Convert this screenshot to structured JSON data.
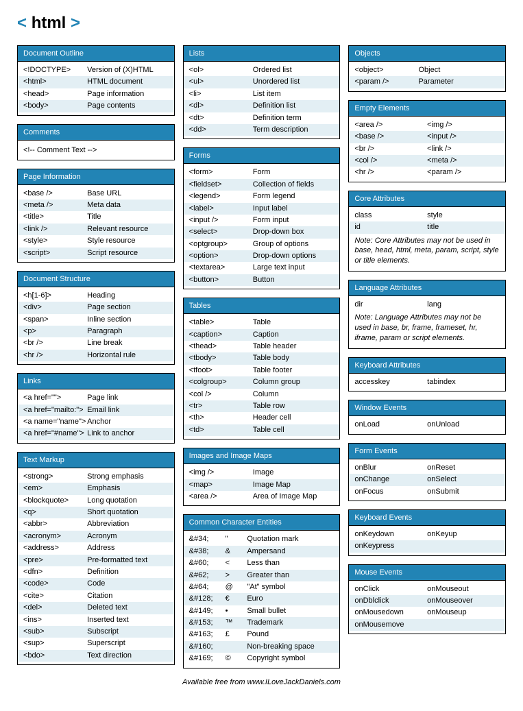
{
  "logo": {
    "text": "html",
    "bracket_color": "#2284b5"
  },
  "colors": {
    "header_bg": "#2284b5",
    "alt_row_bg": "#e3eff4",
    "border": "#000000",
    "text": "#000000",
    "header_text": "#ffffff"
  },
  "columns": [
    {
      "sections": [
        {
          "title": "Document Outline",
          "type": "two-col",
          "rows": [
            {
              "a": "<!DOCTYPE>",
              "b": "Version of (X)HTML"
            },
            {
              "a": "<html>",
              "b": "HTML document"
            },
            {
              "a": "<head>",
              "b": "Page information"
            },
            {
              "a": "<body>",
              "b": "Page contents"
            }
          ]
        },
        {
          "title": "Comments",
          "type": "single",
          "rows": [
            {
              "a": "<!-- Comment Text -->"
            }
          ]
        },
        {
          "title": "Page Information",
          "type": "two-col",
          "rows": [
            {
              "a": "<base />",
              "b": "Base URL"
            },
            {
              "a": "<meta />",
              "b": "Meta data"
            },
            {
              "a": "<title>",
              "b": "Title"
            },
            {
              "a": "<link />",
              "b": "Relevant resource"
            },
            {
              "a": "<style>",
              "b": "Style resource"
            },
            {
              "a": "<script>",
              "b": "Script resource"
            }
          ]
        },
        {
          "title": "Document Structure",
          "type": "two-col",
          "rows": [
            {
              "a": "<h[1-6]>",
              "b": "Heading"
            },
            {
              "a": "<div>",
              "b": "Page section"
            },
            {
              "a": "<span>",
              "b": "Inline section"
            },
            {
              "a": "<p>",
              "b": "Paragraph"
            },
            {
              "a": "<br />",
              "b": "Line break"
            },
            {
              "a": "<hr />",
              "b": "Horizontal rule"
            }
          ]
        },
        {
          "title": "Links",
          "type": "two-col",
          "rows": [
            {
              "a": "<a href=\"\">",
              "b": "Page link"
            },
            {
              "a": "<a href=\"mailto:\">",
              "b": "Email link"
            },
            {
              "a": "<a name=\"name\">",
              "b": "Anchor"
            },
            {
              "a": "<a href=\"#name\">",
              "b": "Link to anchor"
            }
          ]
        },
        {
          "title": "Text Markup",
          "type": "two-col",
          "rows": [
            {
              "a": "<strong>",
              "b": "Strong emphasis"
            },
            {
              "a": "<em>",
              "b": "Emphasis"
            },
            {
              "a": "<blockquote>",
              "b": "Long quotation"
            },
            {
              "a": "<q>",
              "b": "Short quotation"
            },
            {
              "a": "<abbr>",
              "b": "Abbreviation"
            },
            {
              "a": "<acronym>",
              "b": "Acronym"
            },
            {
              "a": "<address>",
              "b": "Address"
            },
            {
              "a": "<pre>",
              "b": "Pre-formatted text"
            },
            {
              "a": "<dfn>",
              "b": "Definition"
            },
            {
              "a": "<code>",
              "b": "Code"
            },
            {
              "a": "<cite>",
              "b": "Citation"
            },
            {
              "a": "<del>",
              "b": "Deleted text"
            },
            {
              "a": "<ins>",
              "b": "Inserted text"
            },
            {
              "a": "<sub>",
              "b": "Subscript"
            },
            {
              "a": "<sup>",
              "b": "Superscript"
            },
            {
              "a": "<bdo>",
              "b": "Text direction"
            }
          ]
        }
      ]
    },
    {
      "sections": [
        {
          "title": "Lists",
          "type": "two-col",
          "rows": [
            {
              "a": "<ol>",
              "b": "Ordered list"
            },
            {
              "a": "<ul>",
              "b": "Unordered list"
            },
            {
              "a": "<li>",
              "b": "List item"
            },
            {
              "a": "<dl>",
              "b": "Definition list"
            },
            {
              "a": "<dt>",
              "b": "Definition term"
            },
            {
              "a": "<dd>",
              "b": "Term description"
            }
          ]
        },
        {
          "title": "Forms",
          "type": "two-col",
          "rows": [
            {
              "a": "<form>",
              "b": "Form"
            },
            {
              "a": "<fieldset>",
              "b": "Collection of fields"
            },
            {
              "a": "<legend>",
              "b": "Form legend"
            },
            {
              "a": "<label>",
              "b": "Input label"
            },
            {
              "a": "<input />",
              "b": "Form input"
            },
            {
              "a": "<select>",
              "b": "Drop-down box"
            },
            {
              "a": "<optgroup>",
              "b": "Group of options"
            },
            {
              "a": "<option>",
              "b": "Drop-down options"
            },
            {
              "a": "<textarea>",
              "b": "Large text input"
            },
            {
              "a": "<button>",
              "b": "Button"
            }
          ]
        },
        {
          "title": "Tables",
          "type": "two-col",
          "rows": [
            {
              "a": "<table>",
              "b": "Table"
            },
            {
              "a": "<caption>",
              "b": "Caption"
            },
            {
              "a": "<thead>",
              "b": "Table header"
            },
            {
              "a": "<tbody>",
              "b": "Table body"
            },
            {
              "a": "<tfoot>",
              "b": "Table footer"
            },
            {
              "a": "<colgroup>",
              "b": "Column group"
            },
            {
              "a": "<col />",
              "b": "Column"
            },
            {
              "a": "<tr>",
              "b": "Table row"
            },
            {
              "a": "<th>",
              "b": "Header cell"
            },
            {
              "a": "<td>",
              "b": "Table cell"
            }
          ]
        },
        {
          "title": "Images and Image Maps",
          "type": "two-col",
          "rows": [
            {
              "a": "<img />",
              "b": "Image"
            },
            {
              "a": "<map>",
              "b": "Image Map"
            },
            {
              "a": "<area />",
              "b": "Area of Image Map"
            }
          ]
        },
        {
          "title": "Common Character Entities",
          "type": "three-col",
          "rows": [
            {
              "a": "&#34;",
              "b": "\"",
              "c": "Quotation mark"
            },
            {
              "a": "&#38;",
              "b": "&",
              "c": "Ampersand"
            },
            {
              "a": "&#60;",
              "b": "<",
              "c": "Less than"
            },
            {
              "a": "&#62;",
              "b": ">",
              "c": "Greater than"
            },
            {
              "a": "&#64;",
              "b": "@",
              "c": "\"At\" symbol"
            },
            {
              "a": "&#128;",
              "b": "€",
              "c": "Euro"
            },
            {
              "a": "&#149;",
              "b": "•",
              "c": "Small bullet"
            },
            {
              "a": "&#153;",
              "b": "™",
              "c": "Trademark"
            },
            {
              "a": "&#163;",
              "b": "£",
              "c": "Pound"
            },
            {
              "a": "&#160;",
              "b": "",
              "c": "Non-breaking space"
            },
            {
              "a": "&#169;",
              "b": "©",
              "c": "Copyright symbol"
            }
          ]
        }
      ]
    },
    {
      "sections": [
        {
          "title": "Objects",
          "type": "two-col",
          "rows": [
            {
              "a": "<object>",
              "b": "Object"
            },
            {
              "a": "<param />",
              "b": "Parameter"
            }
          ]
        },
        {
          "title": "Empty Elements",
          "type": "halves",
          "rows": [
            {
              "a": "<area />",
              "b": "<img />"
            },
            {
              "a": "<base />",
              "b": "<input />"
            },
            {
              "a": "<br />",
              "b": "<link />"
            },
            {
              "a": "<col />",
              "b": "<meta />"
            },
            {
              "a": "<hr />",
              "b": "<param />"
            }
          ]
        },
        {
          "title": "Core Attributes",
          "type": "halves",
          "rows": [
            {
              "a": "class",
              "b": "style"
            },
            {
              "a": "id",
              "b": "title"
            }
          ],
          "note": "Note: Core Attributes may not be used in base, head, html, meta, param, script, style or title elements."
        },
        {
          "title": "Language Attributes",
          "type": "halves",
          "rows": [
            {
              "a": "dir",
              "b": "lang"
            }
          ],
          "note": "Note: Language Attributes may not be used in base, br, frame, frameset, hr, iframe, param or script elements."
        },
        {
          "title": "Keyboard Attributes",
          "type": "halves",
          "rows": [
            {
              "a": "accesskey",
              "b": "tabindex"
            }
          ]
        },
        {
          "title": "Window Events",
          "type": "halves",
          "rows": [
            {
              "a": "onLoad",
              "b": "onUnload"
            }
          ]
        },
        {
          "title": "Form Events",
          "type": "halves",
          "rows": [
            {
              "a": "onBlur",
              "b": "onReset"
            },
            {
              "a": "onChange",
              "b": "onSelect"
            },
            {
              "a": "onFocus",
              "b": "onSubmit"
            }
          ]
        },
        {
          "title": "Keyboard Events",
          "type": "halves",
          "rows": [
            {
              "a": "onKeydown",
              "b": "onKeyup"
            },
            {
              "a": "onKeypress",
              "b": ""
            }
          ]
        },
        {
          "title": "Mouse Events",
          "type": "halves",
          "rows": [
            {
              "a": "onClick",
              "b": "onMouseout"
            },
            {
              "a": "onDblclick",
              "b": "onMouseover"
            },
            {
              "a": "onMousedown",
              "b": "onMouseup"
            },
            {
              "a": "onMousemove",
              "b": ""
            }
          ]
        }
      ]
    }
  ],
  "footer": "Available free from www.ILoveJackDaniels.com"
}
